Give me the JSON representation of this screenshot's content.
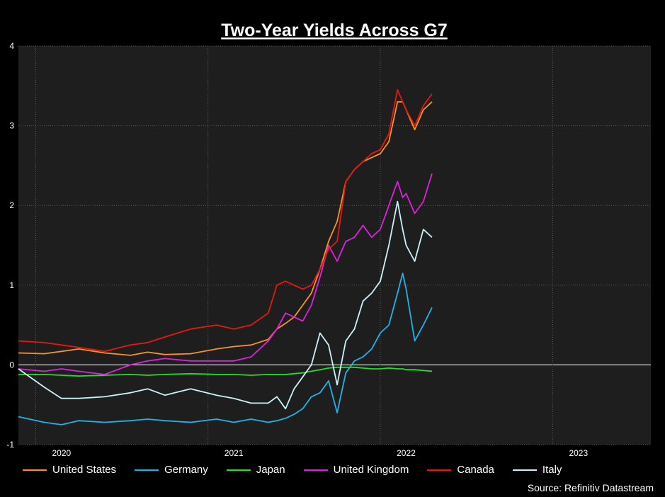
{
  "chart_data": {
    "type": "line",
    "title": "Two-Year Yields Across G7",
    "source": "Source: Refinitiv Datastream",
    "xlabel": "",
    "ylabel": "",
    "ylim": [
      -1,
      4
    ],
    "yticks": [
      "4",
      "3",
      "2",
      "1",
      "0",
      "-1"
    ],
    "xlim": [
      2019.75,
      2023.42
    ],
    "xticks": [
      {
        "label": "2020",
        "x": 2020.0
      },
      {
        "label": "2021",
        "x": 2021.0
      },
      {
        "label": "2022",
        "x": 2022.0
      },
      {
        "label": "2023",
        "x": 2023.0
      }
    ],
    "grid": true,
    "legend_position": "bottom",
    "background": "#1e1e1e",
    "series": [
      {
        "name": "United States",
        "color": "#f7941d",
        "x": [
          2019.75,
          2019.9,
          2020.0,
          2020.1,
          2020.25,
          2020.4,
          2020.5,
          2020.6,
          2020.75,
          2020.9,
          2021.0,
          2021.1,
          2021.2,
          2021.25,
          2021.3,
          2021.35,
          2021.4,
          2021.45,
          2021.5,
          2021.55,
          2021.6,
          2021.65,
          2021.7,
          2021.75,
          2021.8,
          2021.85,
          2021.9,
          2021.95,
          2021.98,
          2022.0,
          2022.05,
          2022.1,
          2022.15
        ],
        "y": [
          0.15,
          0.14,
          0.17,
          0.2,
          0.15,
          0.12,
          0.16,
          0.13,
          0.14,
          0.2,
          0.23,
          0.25,
          0.32,
          0.45,
          0.52,
          0.6,
          0.75,
          0.9,
          1.2,
          1.55,
          1.8,
          2.3,
          2.45,
          2.55,
          2.6,
          2.65,
          2.8,
          3.3,
          3.3,
          3.2,
          2.95,
          3.2,
          3.3
        ]
      },
      {
        "name": "Germany",
        "color": "#1fb4e8",
        "x": [
          2019.75,
          2019.9,
          2020.0,
          2020.1,
          2020.25,
          2020.4,
          2020.5,
          2020.6,
          2020.75,
          2020.9,
          2021.0,
          2021.1,
          2021.2,
          2021.25,
          2021.3,
          2021.35,
          2021.4,
          2021.45,
          2021.5,
          2021.55,
          2021.6,
          2021.65,
          2021.7,
          2021.75,
          2021.8,
          2021.85,
          2021.9,
          2021.95,
          2021.98,
          2022.0,
          2022.05,
          2022.1,
          2022.15
        ],
        "y": [
          -0.65,
          -0.72,
          -0.75,
          -0.7,
          -0.72,
          -0.7,
          -0.68,
          -0.7,
          -0.72,
          -0.68,
          -0.72,
          -0.68,
          -0.72,
          -0.7,
          -0.67,
          -0.62,
          -0.55,
          -0.4,
          -0.35,
          -0.2,
          -0.6,
          -0.1,
          0.05,
          0.1,
          0.2,
          0.4,
          0.5,
          0.9,
          1.15,
          0.95,
          0.3,
          0.5,
          0.72
        ]
      },
      {
        "name": "Japan",
        "color": "#22e022",
        "x": [
          2019.75,
          2019.9,
          2020.0,
          2020.1,
          2020.25,
          2020.4,
          2020.5,
          2020.6,
          2020.75,
          2020.9,
          2021.0,
          2021.1,
          2021.2,
          2021.25,
          2021.3,
          2021.35,
          2021.4,
          2021.45,
          2021.5,
          2021.55,
          2021.6,
          2021.65,
          2021.7,
          2021.75,
          2021.8,
          2021.85,
          2021.9,
          2021.95,
          2021.98,
          2022.0,
          2022.05,
          2022.1,
          2022.15
        ],
        "y": [
          -0.12,
          -0.12,
          -0.13,
          -0.14,
          -0.13,
          -0.12,
          -0.13,
          -0.12,
          -0.11,
          -0.12,
          -0.12,
          -0.13,
          -0.12,
          -0.12,
          -0.12,
          -0.11,
          -0.1,
          -0.08,
          -0.06,
          -0.04,
          -0.03,
          -0.03,
          -0.03,
          -0.04,
          -0.05,
          -0.05,
          -0.04,
          -0.05,
          -0.05,
          -0.06,
          -0.06,
          -0.07,
          -0.08
        ]
      },
      {
        "name": "United Kingdom",
        "color": "#e020e0",
        "x": [
          2019.75,
          2019.9,
          2020.0,
          2020.1,
          2020.25,
          2020.4,
          2020.5,
          2020.6,
          2020.75,
          2020.9,
          2021.0,
          2021.1,
          2021.2,
          2021.25,
          2021.3,
          2021.35,
          2021.4,
          2021.45,
          2021.5,
          2021.55,
          2021.6,
          2021.65,
          2021.7,
          2021.75,
          2021.8,
          2021.85,
          2021.9,
          2021.95,
          2021.98,
          2022.0,
          2022.05,
          2022.1,
          2022.15
        ],
        "y": [
          -0.05,
          -0.08,
          -0.05,
          -0.08,
          -0.12,
          0.0,
          0.05,
          0.08,
          0.05,
          0.05,
          0.05,
          0.1,
          0.3,
          0.45,
          0.65,
          0.6,
          0.55,
          0.75,
          1.1,
          1.5,
          1.3,
          1.55,
          1.6,
          1.75,
          1.6,
          1.7,
          2.0,
          2.3,
          2.1,
          2.15,
          1.9,
          2.05,
          2.4
        ]
      },
      {
        "name": "Canada",
        "color": "#e8180f",
        "x": [
          2019.75,
          2019.9,
          2020.0,
          2020.1,
          2020.25,
          2020.4,
          2020.5,
          2020.6,
          2020.75,
          2020.9,
          2021.0,
          2021.1,
          2021.2,
          2021.25,
          2021.3,
          2021.35,
          2021.4,
          2021.45,
          2021.5,
          2021.55,
          2021.6,
          2021.65,
          2021.7,
          2021.75,
          2021.8,
          2021.85,
          2021.9,
          2021.95,
          2021.98,
          2022.0,
          2022.05,
          2022.1,
          2022.15
        ],
        "y": [
          0.3,
          0.28,
          0.25,
          0.22,
          0.17,
          0.25,
          0.28,
          0.35,
          0.45,
          0.5,
          0.45,
          0.5,
          0.65,
          1.0,
          1.05,
          1.0,
          0.95,
          1.0,
          1.2,
          1.45,
          1.55,
          2.3,
          2.45,
          2.55,
          2.65,
          2.7,
          2.9,
          3.45,
          3.3,
          3.2,
          3.0,
          3.25,
          3.4
        ]
      },
      {
        "name": "Italy",
        "color": "#c9f2fa",
        "x": [
          2019.75,
          2019.9,
          2020.0,
          2020.1,
          2020.25,
          2020.4,
          2020.5,
          2020.6,
          2020.75,
          2020.9,
          2021.0,
          2021.1,
          2021.2,
          2021.25,
          2021.3,
          2021.35,
          2021.4,
          2021.45,
          2021.5,
          2021.55,
          2021.6,
          2021.65,
          2021.7,
          2021.75,
          2021.8,
          2021.85,
          2021.9,
          2021.95,
          2021.98,
          2022.0,
          2022.05,
          2022.1,
          2022.15
        ],
        "y": [
          -0.05,
          -0.28,
          -0.42,
          -0.42,
          -0.4,
          -0.35,
          -0.3,
          -0.38,
          -0.3,
          -0.38,
          -0.42,
          -0.48,
          -0.48,
          -0.4,
          -0.55,
          -0.3,
          -0.15,
          0.0,
          0.4,
          0.25,
          -0.25,
          0.3,
          0.45,
          0.8,
          0.9,
          1.05,
          1.5,
          2.05,
          1.7,
          1.5,
          1.3,
          1.7,
          1.6
        ]
      }
    ]
  }
}
